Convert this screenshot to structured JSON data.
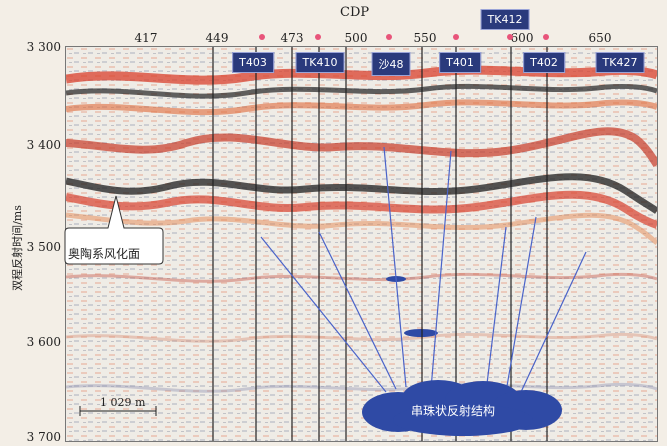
{
  "header": {
    "cdp_title": "CDP"
  },
  "cdp_labels": [
    "417",
    "449",
    "473",
    "500",
    "550",
    "600",
    "650"
  ],
  "wells": [
    "T403",
    "TK410",
    "沙48",
    "T401",
    "TK412",
    "T402",
    "TK427"
  ],
  "y_axis": {
    "label": "双程反射时间/ms",
    "ticks": [
      "3 300",
      "3 400",
      "3 500",
      "3 600",
      "3 700"
    ]
  },
  "annotations": {
    "unconformity": "奥陶系风化面",
    "bead_structure": "串珠状反射结构",
    "scale_bar": "1 029 m"
  },
  "colors": {
    "well_box": "#2a3a7c",
    "well_dot": "#e8547a",
    "callout_cloud": "#2f4aa5"
  }
}
